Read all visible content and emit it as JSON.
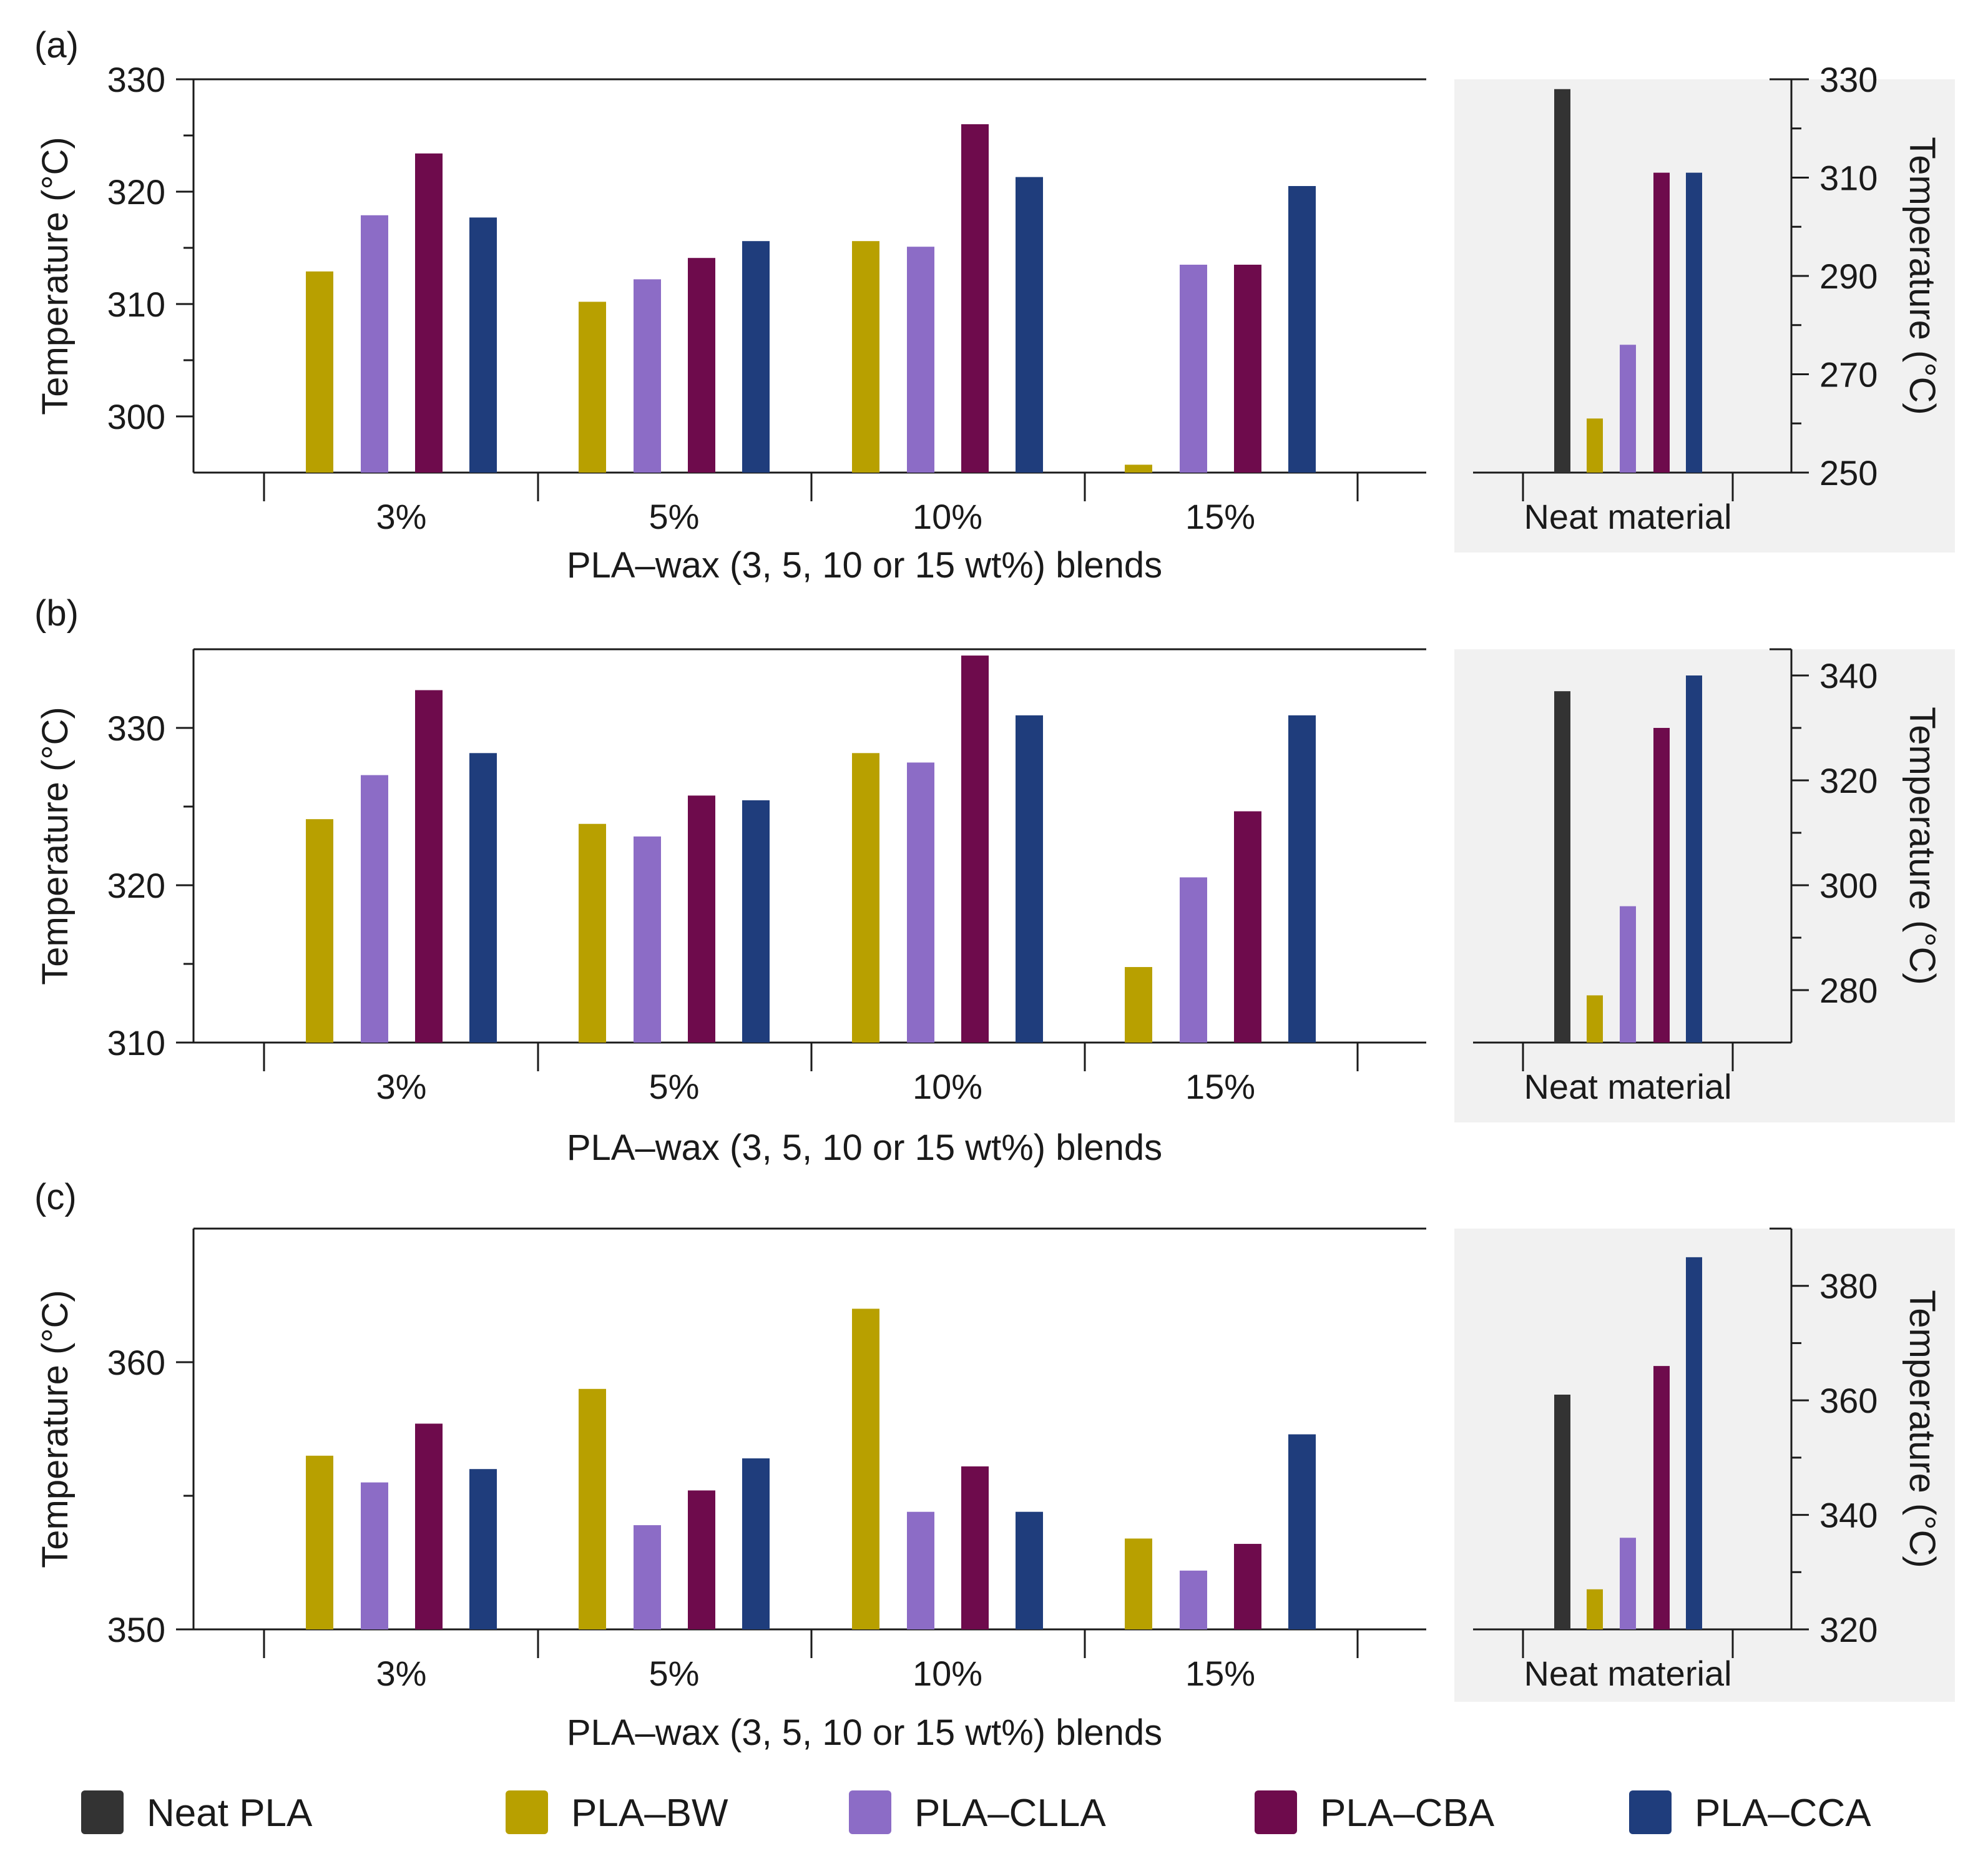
{
  "colors": {
    "neat_pla": "#333333",
    "pla_bw": "#b8a000",
    "pla_clla": "#8c6cc6",
    "pla_cba": "#6e0b4c",
    "pla_cca": "#1f3d7c",
    "shade": "#f1f1f1",
    "axis": "#1a1a1a"
  },
  "legend": [
    {
      "key": "neat_pla",
      "label": "Neat PLA"
    },
    {
      "key": "pla_bw",
      "label": "PLA–BW"
    },
    {
      "key": "pla_clla",
      "label": "PLA–CLLA"
    },
    {
      "key": "pla_cba",
      "label": "PLA–CBA"
    },
    {
      "key": "pla_cca",
      "label": "PLA–CCA"
    }
  ],
  "chart_data": [
    {
      "type": "bar",
      "panel": "(a)",
      "xlabel": "PLA–wax (3, 5, 10 or 15 wt%) blends",
      "ylabel": "Temperature (°C)",
      "categories": [
        "3%",
        "5%",
        "10%",
        "15%"
      ],
      "ylim": [
        295,
        330
      ],
      "yticks": [
        300,
        310,
        320,
        330
      ],
      "yminor": [
        305,
        315,
        325
      ],
      "series": [
        {
          "name": "PLA–BW",
          "key": "pla_bw",
          "values": [
            312.9,
            310.2,
            315.6,
            295.7
          ]
        },
        {
          "name": "PLA–CLLA",
          "key": "pla_clla",
          "values": [
            317.9,
            312.2,
            315.1,
            313.5
          ]
        },
        {
          "name": "PLA–CBA",
          "key": "pla_cba",
          "values": [
            323.4,
            314.1,
            326.0,
            313.5
          ]
        },
        {
          "name": "PLA–CCA",
          "key": "pla_cca",
          "values": [
            317.7,
            315.6,
            321.3,
            320.5
          ]
        }
      ],
      "neat": {
        "xlabel": "Neat material",
        "ylabel": "Temperature (°C)",
        "ylim": [
          250,
          330
        ],
        "yticks": [
          250,
          270,
          290,
          310,
          330
        ],
        "yminor": [
          260,
          280,
          300,
          320
        ],
        "values": [
          {
            "name": "Neat PLA",
            "key": "neat_pla",
            "value": 328
          },
          {
            "name": "PLA–BW",
            "key": "pla_bw",
            "value": 261
          },
          {
            "name": "PLA–CLLA",
            "key": "pla_clla",
            "value": 276
          },
          {
            "name": "PLA–CBA",
            "key": "pla_cba",
            "value": 311
          },
          {
            "name": "PLA–CCA",
            "key": "pla_cca",
            "value": 311
          }
        ]
      }
    },
    {
      "type": "bar",
      "panel": "(b)",
      "xlabel": "PLA–wax (3, 5, 10 or 15 wt%) blends",
      "ylabel": "Temperature (°C)",
      "categories": [
        "3%",
        "5%",
        "10%",
        "15%"
      ],
      "ylim": [
        310,
        335
      ],
      "yticks": [
        310,
        320,
        330
      ],
      "yminor": [
        315,
        325
      ],
      "series": [
        {
          "name": "PLA–BW",
          "key": "pla_bw",
          "values": [
            324.2,
            323.9,
            328.4,
            314.8
          ]
        },
        {
          "name": "PLA–CLLA",
          "key": "pla_clla",
          "values": [
            327.0,
            323.1,
            327.8,
            320.5
          ]
        },
        {
          "name": "PLA–CBA",
          "key": "pla_cba",
          "values": [
            332.4,
            325.7,
            334.6,
            324.7
          ]
        },
        {
          "name": "PLA–CCA",
          "key": "pla_cca",
          "values": [
            328.4,
            325.4,
            330.8,
            330.8
          ]
        }
      ],
      "neat": {
        "xlabel": "Neat material",
        "ylabel": "Temperature (°C)",
        "ylim": [
          270,
          345
        ],
        "yticks": [
          280,
          300,
          320,
          340
        ],
        "yminor": [
          290,
          310,
          330
        ],
        "values": [
          {
            "name": "Neat PLA",
            "key": "neat_pla",
            "value": 337
          },
          {
            "name": "PLA–BW",
            "key": "pla_bw",
            "value": 279
          },
          {
            "name": "PLA–CLLA",
            "key": "pla_clla",
            "value": 296
          },
          {
            "name": "PLA–CBA",
            "key": "pla_cba",
            "value": 330
          },
          {
            "name": "PLA–CCA",
            "key": "pla_cca",
            "value": 340
          }
        ]
      }
    },
    {
      "type": "bar",
      "panel": "(c)",
      "xlabel": "PLA–wax (3, 5, 10 or 15 wt%) blends",
      "ylabel": "Temperature (°C)",
      "categories": [
        "3%",
        "5%",
        "10%",
        "15%"
      ],
      "ylim": [
        350,
        365
      ],
      "yticks": [
        350,
        360
      ],
      "yminor": [
        355
      ],
      "series": [
        {
          "name": "PLA–BW",
          "key": "pla_bw",
          "values": [
            356.5,
            359.0,
            362.0,
            353.4
          ]
        },
        {
          "name": "PLA–CLLA",
          "key": "pla_clla",
          "values": [
            355.5,
            353.9,
            354.4,
            352.2
          ]
        },
        {
          "name": "PLA–CBA",
          "key": "pla_cba",
          "values": [
            357.7,
            355.2,
            356.1,
            353.2
          ]
        },
        {
          "name": "PLA–CCA",
          "key": "pla_cca",
          "values": [
            356.0,
            356.4,
            354.4,
            357.3
          ]
        }
      ],
      "neat": {
        "xlabel": "Neat material",
        "ylabel": "Temperature (°C)",
        "ylim": [
          320,
          390
        ],
        "yticks": [
          320,
          340,
          360,
          380
        ],
        "yminor": [
          330,
          350,
          370
        ],
        "values": [
          {
            "name": "Neat PLA",
            "key": "neat_pla",
            "value": 361
          },
          {
            "name": "PLA–BW",
            "key": "pla_bw",
            "value": 327
          },
          {
            "name": "PLA–CLLA",
            "key": "pla_clla",
            "value": 336
          },
          {
            "name": "PLA–CBA",
            "key": "pla_cba",
            "value": 366
          },
          {
            "name": "PLA–CCA",
            "key": "pla_cca",
            "value": 385
          }
        ]
      }
    }
  ]
}
